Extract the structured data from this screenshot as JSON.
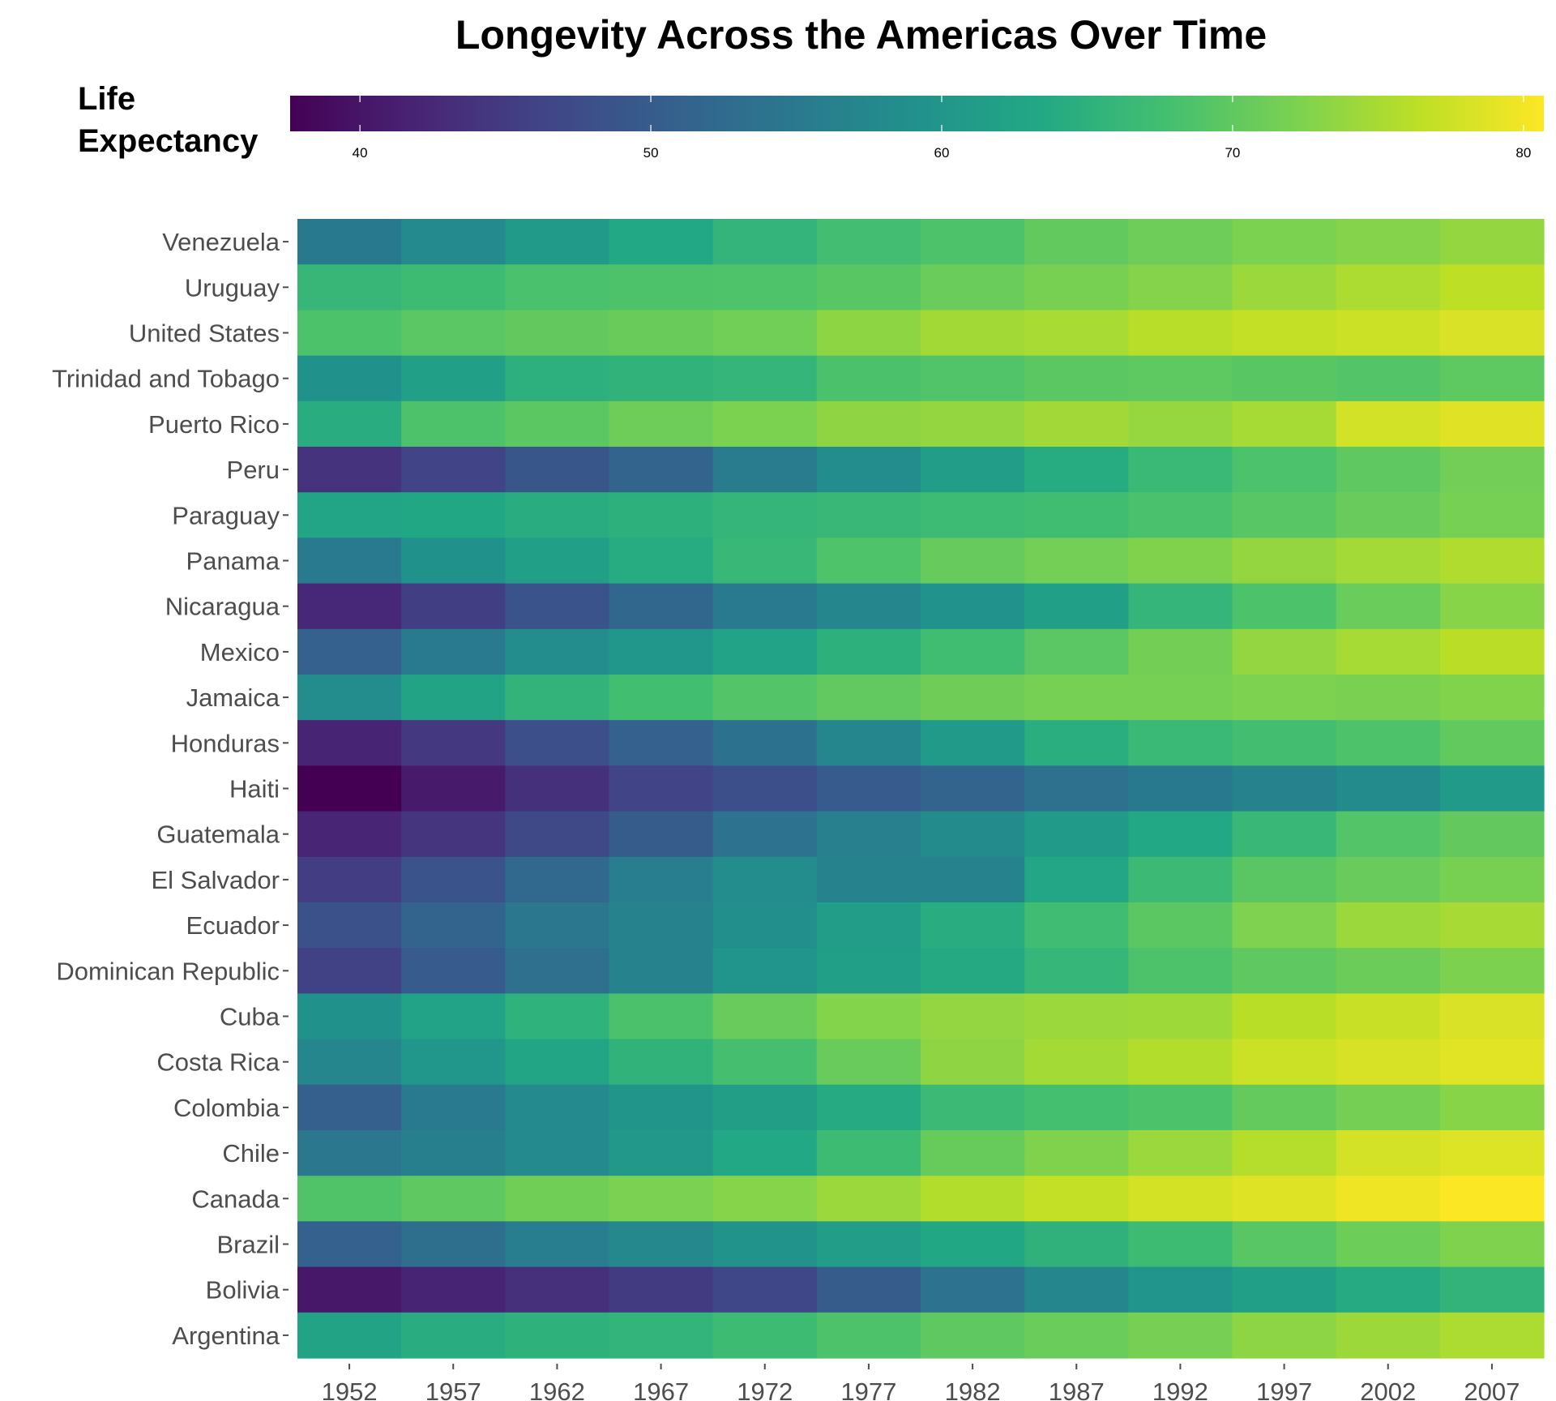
{
  "chart_data": {
    "type": "heatmap",
    "title": "Longevity Across the Americas Over Time",
    "legend": {
      "title_line1": "Life",
      "title_line2": "Expectancy",
      "placement": "top",
      "range": [
        37.6,
        80.7
      ],
      "ticks": [
        40,
        50,
        60,
        70,
        80
      ],
      "colormap": "viridis"
    },
    "xlabel": "",
    "ylabel": "",
    "highlight": {
      "label": "United States",
      "color": "#ff0000"
    },
    "years": [
      "1952",
      "1957",
      "1962",
      "1967",
      "1972",
      "1977",
      "1982",
      "1987",
      "1992",
      "1997",
      "2002",
      "2007"
    ],
    "countries": [
      {
        "name": "Venezuela",
        "values": [
          55.088,
          57.907,
          60.77,
          63.479,
          65.712,
          67.456,
          68.557,
          70.19,
          71.15,
          72.146,
          72.766,
          73.747
        ]
      },
      {
        "name": "Uruguay",
        "values": [
          66.071,
          67.044,
          68.253,
          68.468,
          68.673,
          69.481,
          70.805,
          71.918,
          72.752,
          74.223,
          75.307,
          76.384
        ]
      },
      {
        "name": "United States",
        "values": [
          68.44,
          69.49,
          70.21,
          70.76,
          71.34,
          73.38,
          74.65,
          75.02,
          76.09,
          76.81,
          77.31,
          78.242
        ]
      },
      {
        "name": "Trinidad and Tobago",
        "values": [
          59.1,
          61.8,
          64.9,
          65.4,
          65.9,
          68.3,
          68.832,
          69.582,
          69.862,
          69.465,
          68.976,
          69.819
        ]
      },
      {
        "name": "Puerto Rico",
        "values": [
          64.28,
          68.54,
          69.62,
          71.1,
          72.16,
          73.44,
          73.75,
          74.63,
          73.911,
          74.917,
          77.778,
          78.746
        ]
      },
      {
        "name": "Peru",
        "values": [
          43.902,
          46.263,
          49.096,
          51.445,
          55.448,
          58.447,
          61.406,
          64.134,
          66.458,
          68.386,
          69.906,
          71.421
        ]
      },
      {
        "name": "Paraguay",
        "values": [
          62.649,
          63.196,
          64.361,
          64.951,
          65.815,
          66.353,
          66.874,
          67.378,
          68.225,
          69.4,
          70.755,
          71.752
        ]
      },
      {
        "name": "Panama",
        "values": [
          55.191,
          59.201,
          61.817,
          64.071,
          66.216,
          68.681,
          70.472,
          71.523,
          72.462,
          73.738,
          74.712,
          75.537
        ]
      },
      {
        "name": "Nicaragua",
        "values": [
          42.314,
          45.432,
          48.632,
          51.884,
          55.151,
          57.47,
          59.298,
          62.008,
          65.843,
          68.426,
          70.836,
          72.899
        ]
      },
      {
        "name": "Mexico",
        "values": [
          50.789,
          55.19,
          58.299,
          60.11,
          62.361,
          65.032,
          67.405,
          69.498,
          71.455,
          73.67,
          74.902,
          76.195
        ]
      },
      {
        "name": "Jamaica",
        "values": [
          58.53,
          62.61,
          65.61,
          67.51,
          69.0,
          70.11,
          71.21,
          71.77,
          71.766,
          72.262,
          72.047,
          72.567
        ]
      },
      {
        "name": "Honduras",
        "values": [
          41.912,
          44.665,
          48.041,
          50.924,
          53.884,
          57.402,
          60.909,
          64.492,
          66.399,
          67.659,
          68.565,
          70.198
        ]
      },
      {
        "name": "Haiti",
        "values": [
          37.579,
          40.696,
          43.59,
          46.243,
          48.042,
          49.923,
          51.461,
          53.636,
          55.089,
          56.671,
          58.137,
          60.916
        ]
      },
      {
        "name": "Guatemala",
        "values": [
          42.023,
          44.142,
          46.954,
          50.016,
          53.738,
          56.029,
          58.137,
          60.782,
          63.373,
          66.322,
          68.978,
          70.259
        ]
      },
      {
        "name": "El Salvador",
        "values": [
          45.262,
          48.57,
          52.307,
          55.855,
          58.207,
          56.696,
          56.604,
          63.154,
          66.798,
          69.535,
          70.734,
          71.878
        ]
      },
      {
        "name": "Ecuador",
        "values": [
          48.357,
          51.356,
          54.64,
          56.678,
          58.796,
          61.31,
          64.342,
          67.231,
          69.613,
          72.312,
          74.173,
          74.994
        ]
      },
      {
        "name": "Dominican Republic",
        "values": [
          45.928,
          49.828,
          53.459,
          56.751,
          59.631,
          61.788,
          63.727,
          66.046,
          68.457,
          69.957,
          70.847,
          72.235
        ]
      },
      {
        "name": "Cuba",
        "values": [
          59.421,
          62.325,
          65.246,
          68.29,
          70.723,
          72.649,
          73.717,
          74.174,
          74.414,
          76.151,
          77.158,
          78.273
        ]
      },
      {
        "name": "Costa Rica",
        "values": [
          57.206,
          60.026,
          62.842,
          65.424,
          67.849,
          70.75,
          73.45,
          74.752,
          75.713,
          77.26,
          78.123,
          78.782
        ]
      },
      {
        "name": "Colombia",
        "values": [
          50.643,
          55.118,
          57.863,
          59.963,
          61.623,
          63.837,
          66.653,
          67.768,
          68.421,
          70.313,
          71.682,
          72.889
        ]
      },
      {
        "name": "Chile",
        "values": [
          54.745,
          56.074,
          57.924,
          60.523,
          63.441,
          67.052,
          70.565,
          72.492,
          74.126,
          75.816,
          77.86,
          78.553
        ]
      },
      {
        "name": "Canada",
        "values": [
          68.75,
          69.96,
          71.3,
          72.13,
          72.88,
          74.21,
          75.76,
          76.86,
          77.95,
          78.61,
          79.77,
          80.653
        ]
      },
      {
        "name": "Brazil",
        "values": [
          50.917,
          53.285,
          55.665,
          57.632,
          59.504,
          61.489,
          63.336,
          65.205,
          67.057,
          69.388,
          71.006,
          72.39
        ]
      },
      {
        "name": "Bolivia",
        "values": [
          40.414,
          41.89,
          43.428,
          45.032,
          46.714,
          50.023,
          53.859,
          57.251,
          59.957,
          62.05,
          63.883,
          65.554
        ]
      },
      {
        "name": "Argentina",
        "values": [
          62.485,
          64.399,
          65.142,
          65.634,
          67.065,
          68.481,
          69.942,
          70.774,
          71.868,
          73.275,
          74.34,
          75.32
        ]
      }
    ]
  }
}
